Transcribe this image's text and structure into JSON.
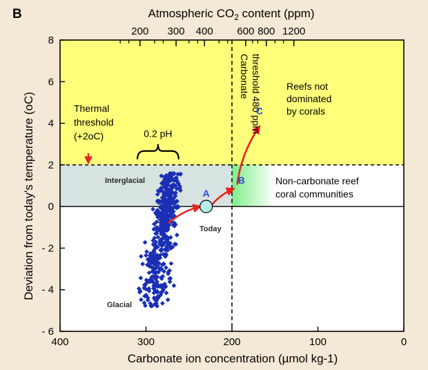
{
  "panel_label": "B",
  "colors": {
    "background": "#f4e9d6",
    "yellow_zone": "#ffff7a",
    "gray_zone": "#d7e3e1",
    "green_zone": "#7fee8a",
    "points": "#1a2fb4",
    "arrows": "#e8231c",
    "point_labels": "#2b46e6",
    "today_marker": "#b5ecec"
  },
  "chart_data": {
    "type": "scatter",
    "title": "",
    "xlabel": "Carbonate ion concentration (µmol kg-1)",
    "ylabel": "Deviation from today's temperature (oC)",
    "top_axis_label": "Atmospheric CO2 content (ppm)",
    "xlim": [
      400,
      0
    ],
    "ylim": [
      -6,
      8
    ],
    "x_ticks": [
      "400",
      "300",
      "200",
      "100",
      "0"
    ],
    "y_ticks": [
      "8",
      "6",
      "4",
      "2",
      "0",
      "- 2",
      "- 4",
      "- 6"
    ],
    "top_ticks": [
      {
        "label": "200",
        "x": 307
      },
      {
        "label": "300",
        "x": 265
      },
      {
        "label": "400",
        "x": 232
      },
      {
        "label": "600",
        "x": 184
      },
      {
        "label": "800",
        "x": 160
      },
      {
        "label": "1200",
        "x": 128
      }
    ],
    "zones": [
      {
        "name": "reefs-not-dominated",
        "label": [
          "Reefs not",
          "dominated",
          "by corals"
        ],
        "x_range": [
          400,
          0
        ],
        "y_range": [
          2,
          8
        ]
      },
      {
        "name": "coral-reefs",
        "label": [],
        "x_range": [
          400,
          200
        ],
        "y_range": [
          0,
          2
        ]
      },
      {
        "name": "non-carbonate-reef",
        "label": [
          "Non-carbonate reef",
          "coral communities"
        ],
        "x_range": [
          200,
          0
        ],
        "y_range": [
          0,
          2
        ]
      }
    ],
    "thresholds": {
      "thermal": {
        "label": [
          "Thermal",
          "threshold",
          "(+2oC)"
        ],
        "y": 2
      },
      "carbonate": {
        "label": [
          "Carbonate",
          "threshold 480 ppm"
        ],
        "x": 200
      }
    },
    "ph_bracket": {
      "label": "0.2 pH",
      "x_range": [
        310,
        262
      ],
      "y": 3
    }
  },
  "scatter_params": {
    "count": 480,
    "seed": 7,
    "y_min": -4.8,
    "y_max": 1.6,
    "x_glacial": 294,
    "x_interglacial": 270,
    "x_spread": 9,
    "y_bias": 0.82
  },
  "annotations": {
    "interglacial": "Interglacial",
    "glacial": "Glacial",
    "today": "Today"
  },
  "points": [
    {
      "name": "A",
      "label": "A",
      "x": 230,
      "y": 0
    },
    {
      "name": "B",
      "label": "B",
      "x": 197,
      "y": 0.9
    },
    {
      "name": "C",
      "label": "C",
      "x": 168,
      "y": 4.1
    }
  ],
  "arrow_paths": [
    {
      "name": "glacial-to-today",
      "from": [
        274,
        -0.8
      ],
      "to": [
        237,
        0
      ]
    },
    {
      "name": "today-to-b",
      "from": [
        223,
        0.1
      ],
      "to": [
        198,
        0.85
      ]
    },
    {
      "name": "b-to-c",
      "from": [
        194,
        1.05
      ],
      "to": [
        168,
        3.85
      ]
    }
  ]
}
